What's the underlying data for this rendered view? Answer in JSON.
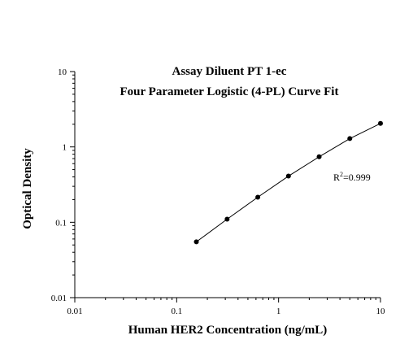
{
  "chart_data": {
    "type": "scatter",
    "title_lines": [
      "Assay Diluent PT 1-ec",
      "Four Parameter Logistic (4-PL) Curve Fit"
    ],
    "xlabel": "Human HER2 Concentration (ng/mL)",
    "ylabel": "Optical Density",
    "x_scale": "log",
    "y_scale": "log",
    "xlim": [
      0.01,
      10
    ],
    "ylim": [
      0.01,
      10
    ],
    "x_ticks": [
      "0.01",
      "0.1",
      "1",
      "10"
    ],
    "y_ticks": [
      "0.01",
      "0.1",
      "1",
      "10"
    ],
    "grid": false,
    "fit": "4-PL curve",
    "annotation": {
      "prefix": "R",
      "sup": "2",
      "suffix": "=0.999"
    },
    "series": [
      {
        "x": [
          0.156,
          0.3125,
          0.625,
          1.25,
          2.5,
          5,
          10
        ],
        "y": [
          0.055,
          0.11,
          0.215,
          0.41,
          0.74,
          1.29,
          2.05
        ]
      }
    ]
  }
}
